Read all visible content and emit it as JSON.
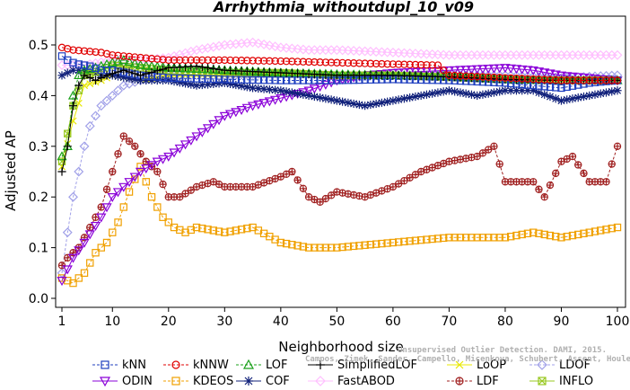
{
  "chart_data": {
    "type": "line",
    "title": "Arrhythmia_withoutdupl_10_v09",
    "xlabel": "Neighborhood size",
    "ylabel": "Adjusted AP",
    "xlim": [
      1,
      100
    ],
    "ylim": [
      0,
      0.52
    ],
    "x_ticks": [
      1,
      10,
      20,
      30,
      40,
      50,
      60,
      70,
      80,
      90,
      100
    ],
    "y_ticks": [
      0.0,
      0.1,
      0.2,
      0.3,
      0.4,
      0.5
    ],
    "y_tick_labels": [
      "0.0",
      "0.1",
      "0.2",
      "0.3",
      "0.4",
      "0.5"
    ],
    "grid": false,
    "legend_position": "bottom",
    "watermark": [
      "Unsupervised Outlier Detection. DAMI, 2015.",
      "Campos, Zimek, Sander, Campello, Micenkova, Schubert, Assent, Houle"
    ],
    "series": [
      {
        "name": "kNN",
        "color": "#1f3fbf",
        "marker": "square",
        "dashed": true,
        "points": [
          [
            1,
            0.478
          ],
          [
            2,
            0.47
          ],
          [
            3,
            0.465
          ],
          [
            4,
            0.462
          ],
          [
            5,
            0.46
          ],
          [
            6,
            0.458
          ],
          [
            8,
            0.45
          ],
          [
            10,
            0.45
          ],
          [
            15,
            0.44
          ],
          [
            20,
            0.435
          ],
          [
            30,
            0.432
          ],
          [
            40,
            0.43
          ],
          [
            50,
            0.43
          ],
          [
            60,
            0.432
          ],
          [
            70,
            0.43
          ],
          [
            80,
            0.425
          ],
          [
            85,
            0.42
          ],
          [
            90,
            0.415
          ],
          [
            95,
            0.425
          ],
          [
            100,
            0.43
          ]
        ]
      },
      {
        "name": "kNNW",
        "color": "#e00000",
        "marker": "circle",
        "dashed": true,
        "points": [
          [
            1,
            0.495
          ],
          [
            3,
            0.49
          ],
          [
            5,
            0.488
          ],
          [
            8,
            0.485
          ],
          [
            10,
            0.48
          ],
          [
            15,
            0.475
          ],
          [
            20,
            0.47
          ],
          [
            30,
            0.47
          ],
          [
            40,
            0.468
          ],
          [
            50,
            0.465
          ],
          [
            60,
            0.462
          ],
          [
            68,
            0.46
          ],
          [
            70,
            0.44
          ],
          [
            80,
            0.435
          ],
          [
            90,
            0.43
          ],
          [
            100,
            0.43
          ]
        ]
      },
      {
        "name": "LOF",
        "color": "#1aa01a",
        "marker": "triangle",
        "dashed": true,
        "points": [
          [
            1,
            0.28
          ],
          [
            2,
            0.3
          ],
          [
            3,
            0.4
          ],
          [
            4,
            0.44
          ],
          [
            5,
            0.45
          ],
          [
            7,
            0.455
          ],
          [
            10,
            0.465
          ],
          [
            12,
            0.47
          ],
          [
            15,
            0.46
          ],
          [
            20,
            0.455
          ],
          [
            30,
            0.45
          ],
          [
            40,
            0.445
          ],
          [
            50,
            0.442
          ],
          [
            60,
            0.44
          ],
          [
            70,
            0.438
          ],
          [
            80,
            0.432
          ],
          [
            90,
            0.43
          ],
          [
            100,
            0.43
          ]
        ]
      },
      {
        "name": "SimplifiedLOF",
        "color": "#000000",
        "marker": "plus",
        "dashed": false,
        "points": [
          [
            1,
            0.25
          ],
          [
            2,
            0.3
          ],
          [
            3,
            0.38
          ],
          [
            4,
            0.42
          ],
          [
            5,
            0.44
          ],
          [
            7,
            0.43
          ],
          [
            9,
            0.44
          ],
          [
            12,
            0.45
          ],
          [
            15,
            0.44
          ],
          [
            20,
            0.455
          ],
          [
            25,
            0.458
          ],
          [
            30,
            0.45
          ],
          [
            40,
            0.445
          ],
          [
            50,
            0.44
          ],
          [
            60,
            0.44
          ],
          [
            70,
            0.437
          ],
          [
            80,
            0.432
          ],
          [
            90,
            0.43
          ],
          [
            100,
            0.43
          ]
        ]
      },
      {
        "name": "LoOP",
        "color": "#e8e800",
        "marker": "x",
        "dashed": false,
        "points": [
          [
            1,
            0.26
          ],
          [
            3,
            0.35
          ],
          [
            5,
            0.42
          ],
          [
            8,
            0.43
          ],
          [
            10,
            0.44
          ],
          [
            15,
            0.43
          ],
          [
            20,
            0.44
          ],
          [
            30,
            0.44
          ],
          [
            40,
            0.44
          ],
          [
            50,
            0.44
          ],
          [
            60,
            0.44
          ],
          [
            70,
            0.435
          ],
          [
            80,
            0.432
          ],
          [
            90,
            0.43
          ],
          [
            100,
            0.43
          ]
        ]
      },
      {
        "name": "LDOF",
        "color": "#a0a0e8",
        "marker": "diamond",
        "dashed": true,
        "points": [
          [
            1,
            0.05
          ],
          [
            2,
            0.13
          ],
          [
            3,
            0.2
          ],
          [
            4,
            0.25
          ],
          [
            5,
            0.3
          ],
          [
            6,
            0.34
          ],
          [
            8,
            0.38
          ],
          [
            10,
            0.4
          ],
          [
            12,
            0.42
          ],
          [
            15,
            0.43
          ],
          [
            20,
            0.44
          ],
          [
            30,
            0.44
          ],
          [
            40,
            0.445
          ],
          [
            50,
            0.44
          ],
          [
            60,
            0.44
          ],
          [
            70,
            0.44
          ],
          [
            80,
            0.44
          ],
          [
            90,
            0.435
          ],
          [
            100,
            0.44
          ]
        ]
      },
      {
        "name": "ODIN",
        "color": "#8a00d8",
        "marker": "triangle-down",
        "dashed": false,
        "points": [
          [
            1,
            0.035
          ],
          [
            3,
            0.08
          ],
          [
            5,
            0.11
          ],
          [
            8,
            0.16
          ],
          [
            10,
            0.2
          ],
          [
            12,
            0.22
          ],
          [
            15,
            0.25
          ],
          [
            18,
            0.27
          ],
          [
            20,
            0.28
          ],
          [
            25,
            0.32
          ],
          [
            30,
            0.36
          ],
          [
            35,
            0.38
          ],
          [
            40,
            0.395
          ],
          [
            45,
            0.41
          ],
          [
            50,
            0.43
          ],
          [
            55,
            0.44
          ],
          [
            60,
            0.445
          ],
          [
            70,
            0.45
          ],
          [
            80,
            0.455
          ],
          [
            85,
            0.45
          ],
          [
            90,
            0.44
          ],
          [
            95,
            0.435
          ],
          [
            100,
            0.43
          ]
        ]
      },
      {
        "name": "KDEOS",
        "color": "#f0a000",
        "marker": "square",
        "dashed": true,
        "points": [
          [
            1,
            0.04
          ],
          [
            3,
            0.03
          ],
          [
            5,
            0.05
          ],
          [
            7,
            0.09
          ],
          [
            9,
            0.11
          ],
          [
            11,
            0.15
          ],
          [
            13,
            0.21
          ],
          [
            15,
            0.26
          ],
          [
            17,
            0.2
          ],
          [
            19,
            0.16
          ],
          [
            21,
            0.14
          ],
          [
            23,
            0.13
          ],
          [
            25,
            0.14
          ],
          [
            30,
            0.13
          ],
          [
            35,
            0.14
          ],
          [
            40,
            0.11
          ],
          [
            45,
            0.1
          ],
          [
            50,
            0.1
          ],
          [
            60,
            0.11
          ],
          [
            70,
            0.12
          ],
          [
            80,
            0.12
          ],
          [
            85,
            0.13
          ],
          [
            90,
            0.12
          ],
          [
            95,
            0.13
          ],
          [
            100,
            0.14
          ]
        ]
      },
      {
        "name": "COF",
        "color": "#10207a",
        "marker": "star",
        "dashed": false,
        "points": [
          [
            1,
            0.44
          ],
          [
            3,
            0.45
          ],
          [
            5,
            0.45
          ],
          [
            8,
            0.44
          ],
          [
            10,
            0.44
          ],
          [
            15,
            0.43
          ],
          [
            20,
            0.43
          ],
          [
            25,
            0.42
          ],
          [
            30,
            0.425
          ],
          [
            35,
            0.415
          ],
          [
            40,
            0.41
          ],
          [
            45,
            0.4
          ],
          [
            50,
            0.39
          ],
          [
            55,
            0.38
          ],
          [
            60,
            0.39
          ],
          [
            65,
            0.4
          ],
          [
            70,
            0.41
          ],
          [
            75,
            0.4
          ],
          [
            80,
            0.41
          ],
          [
            85,
            0.41
          ],
          [
            90,
            0.39
          ],
          [
            95,
            0.4
          ],
          [
            100,
            0.41
          ]
        ]
      },
      {
        "name": "FastABOD",
        "color": "#ffbfff",
        "marker": "diamond",
        "dashed": false,
        "points": [
          [
            1,
            0.46
          ],
          [
            5,
            0.46
          ],
          [
            10,
            0.47
          ],
          [
            15,
            0.47
          ],
          [
            20,
            0.475
          ],
          [
            25,
            0.49
          ],
          [
            30,
            0.5
          ],
          [
            35,
            0.505
          ],
          [
            40,
            0.495
          ],
          [
            45,
            0.49
          ],
          [
            50,
            0.49
          ],
          [
            60,
            0.485
          ],
          [
            70,
            0.48
          ],
          [
            80,
            0.48
          ],
          [
            90,
            0.48
          ],
          [
            100,
            0.48
          ]
        ]
      },
      {
        "name": "LDF",
        "color": "#a02020",
        "marker": "circle-plus",
        "dashed": true,
        "points": [
          [
            1,
            0.065
          ],
          [
            2,
            0.08
          ],
          [
            4,
            0.1
          ],
          [
            6,
            0.14
          ],
          [
            8,
            0.18
          ],
          [
            10,
            0.25
          ],
          [
            12,
            0.32
          ],
          [
            14,
            0.3
          ],
          [
            16,
            0.27
          ],
          [
            18,
            0.25
          ],
          [
            20,
            0.2
          ],
          [
            22,
            0.2
          ],
          [
            25,
            0.22
          ],
          [
            28,
            0.23
          ],
          [
            30,
            0.22
          ],
          [
            35,
            0.22
          ],
          [
            40,
            0.24
          ],
          [
            42,
            0.25
          ],
          [
            45,
            0.2
          ],
          [
            47,
            0.19
          ],
          [
            50,
            0.21
          ],
          [
            55,
            0.2
          ],
          [
            60,
            0.22
          ],
          [
            65,
            0.25
          ],
          [
            70,
            0.27
          ],
          [
            75,
            0.28
          ],
          [
            78,
            0.3
          ],
          [
            80,
            0.23
          ],
          [
            85,
            0.23
          ],
          [
            87,
            0.2
          ],
          [
            90,
            0.27
          ],
          [
            92,
            0.28
          ],
          [
            95,
            0.23
          ],
          [
            98,
            0.23
          ],
          [
            100,
            0.3
          ]
        ]
      },
      {
        "name": "INFLO",
        "color": "#98c820",
        "marker": "square-x",
        "dashed": false,
        "points": [
          [
            1,
            0.27
          ],
          [
            3,
            0.38
          ],
          [
            5,
            0.44
          ],
          [
            8,
            0.45
          ],
          [
            10,
            0.46
          ],
          [
            15,
            0.455
          ],
          [
            20,
            0.45
          ],
          [
            30,
            0.445
          ],
          [
            40,
            0.445
          ],
          [
            50,
            0.44
          ],
          [
            60,
            0.44
          ],
          [
            70,
            0.436
          ],
          [
            80,
            0.432
          ],
          [
            90,
            0.43
          ],
          [
            100,
            0.43
          ]
        ]
      }
    ]
  }
}
